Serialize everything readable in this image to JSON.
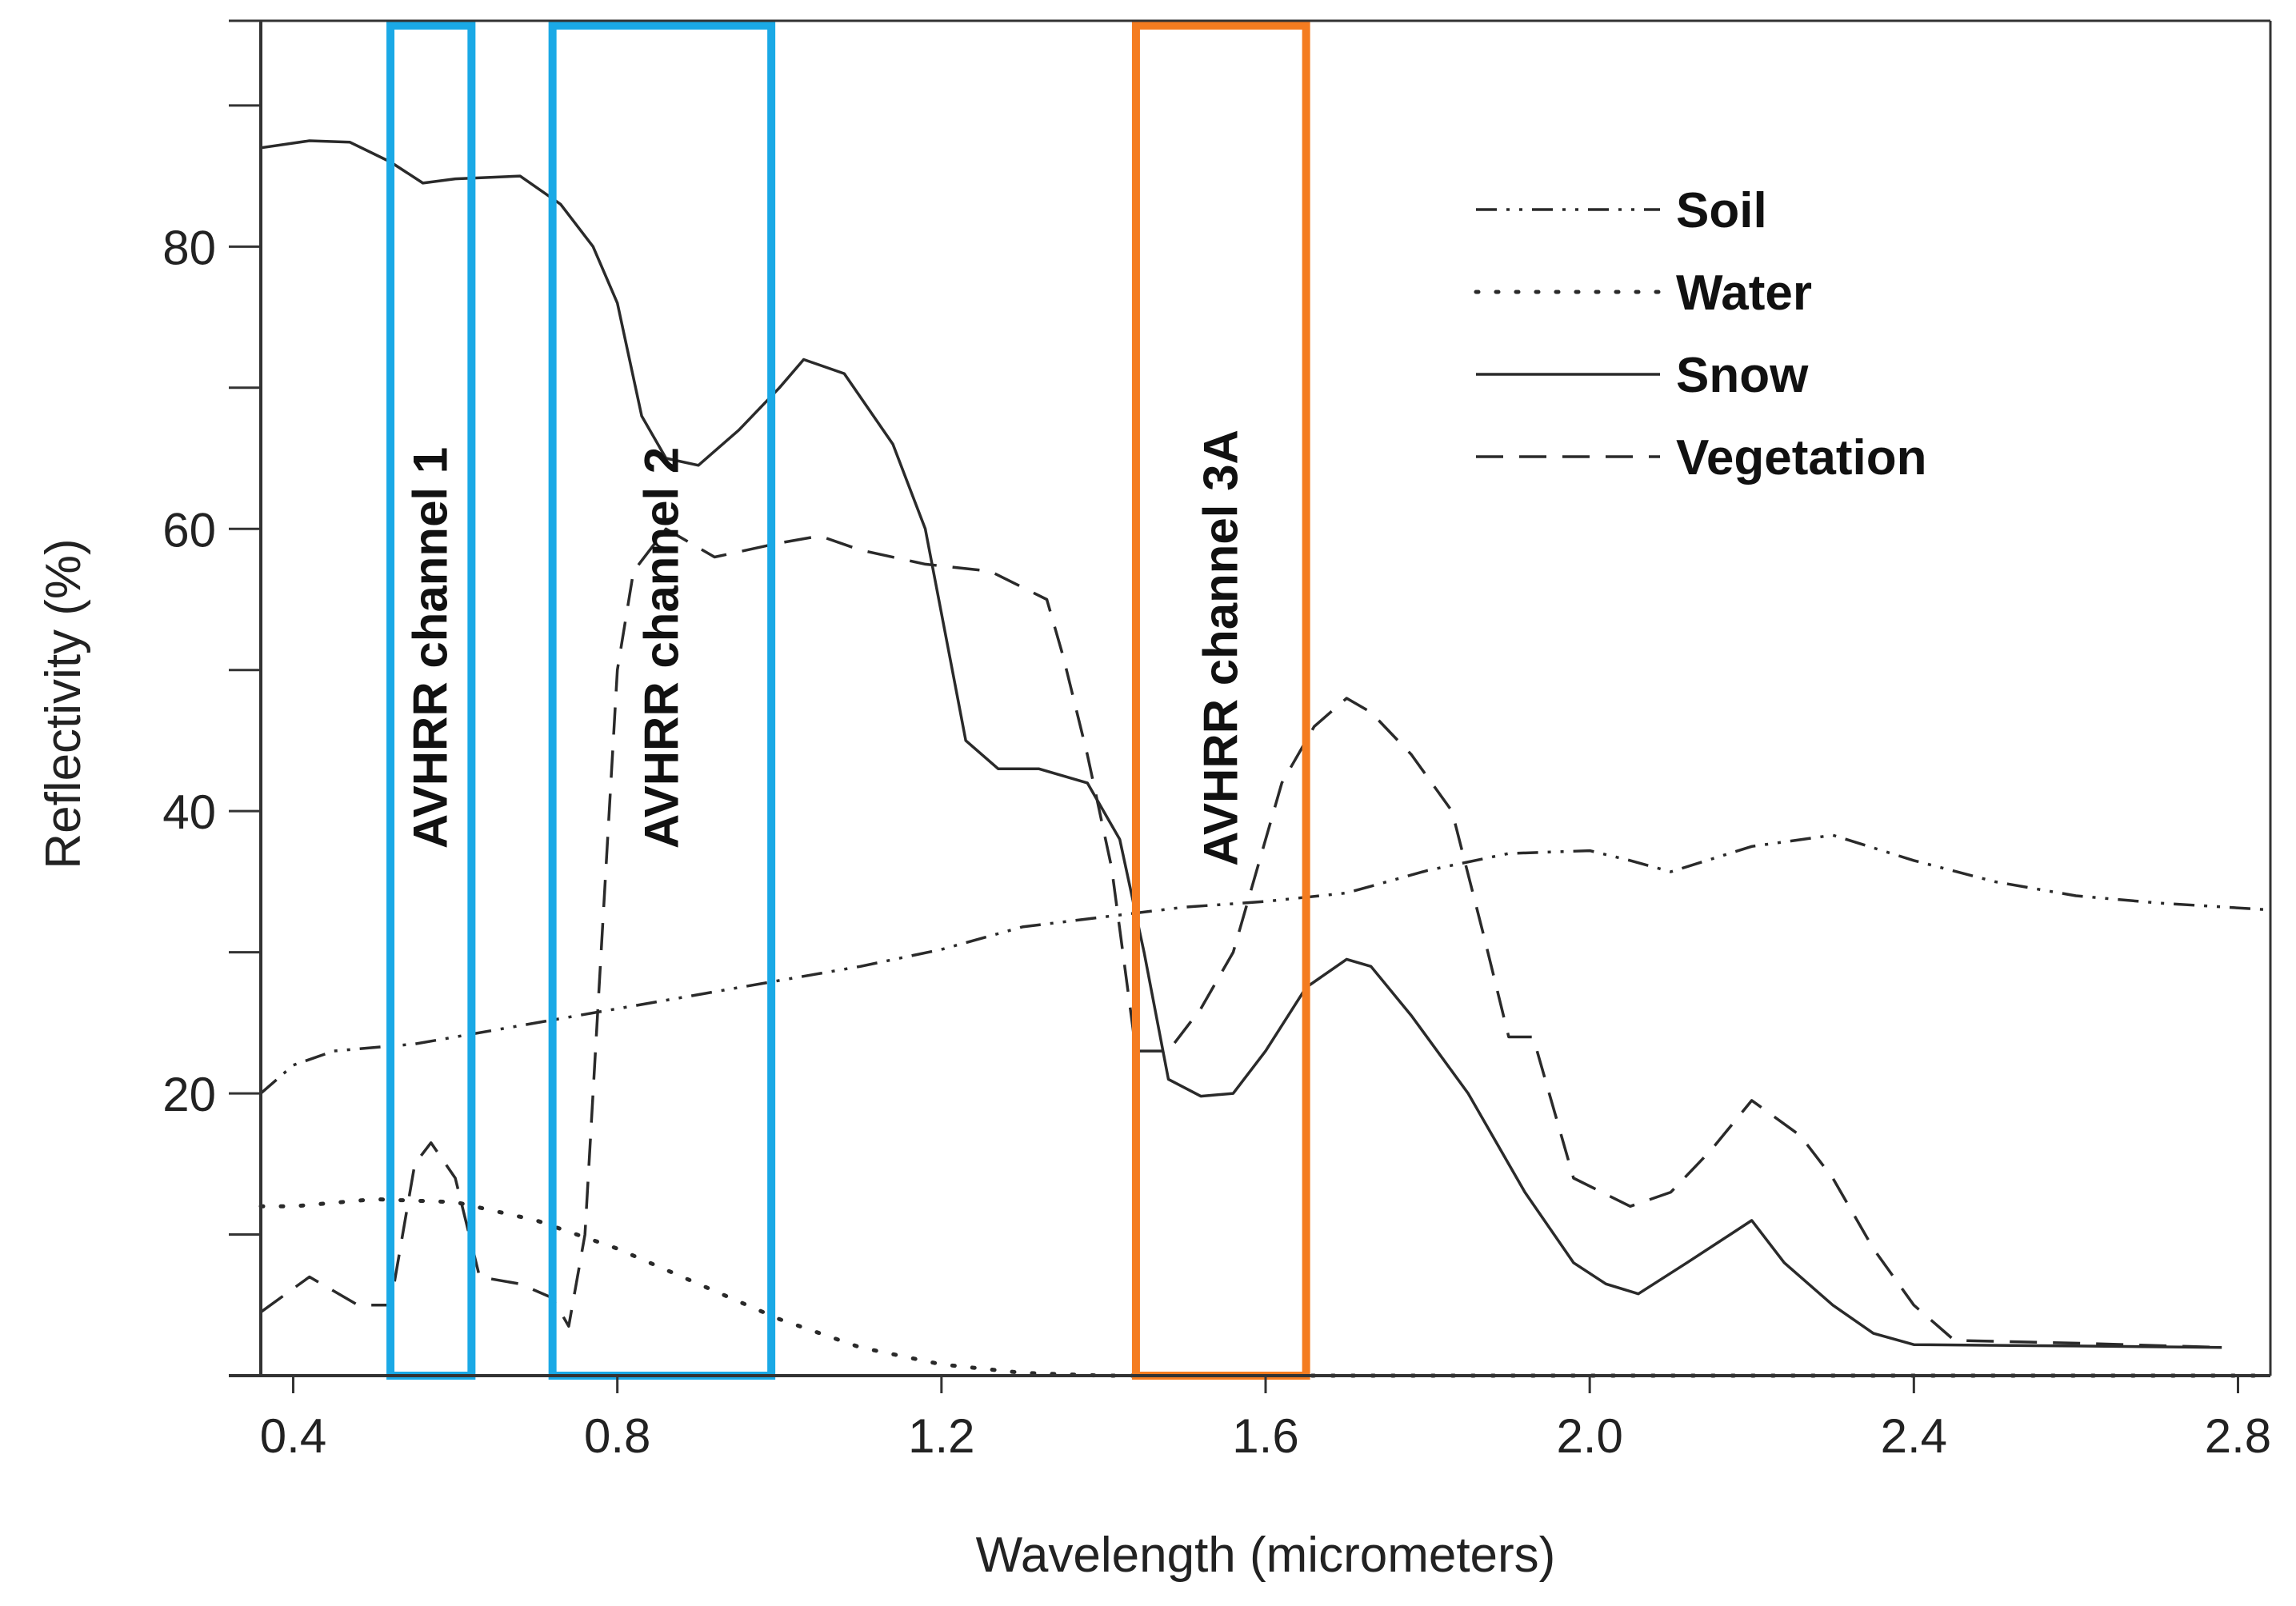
{
  "chart_data": {
    "type": "line",
    "title": "",
    "xlabel": "Wavelength (micrometers)",
    "ylabel": "Reflectivity  (%)",
    "xlim": [
      0.36,
      2.84
    ],
    "ylim": [
      0,
      96
    ],
    "x_ticks": [
      0.4,
      0.8,
      1.2,
      1.6,
      2.0,
      2.4,
      2.8
    ],
    "x_tick_labels": [
      "0.4",
      "0.8",
      "1.2",
      "1.6",
      "2.0",
      "2.4",
      "2.8"
    ],
    "y_ticks": [
      20,
      40,
      60,
      80
    ],
    "y_tick_labels": [
      "20",
      "40",
      "60",
      "80"
    ],
    "y_minor_ticks": [
      10,
      30,
      50,
      70,
      90
    ],
    "grid": false,
    "legend_position": "top-right",
    "series": [
      {
        "name": "Soil",
        "style": "dashdotdot",
        "points": [
          [
            0.36,
            20
          ],
          [
            0.4,
            22
          ],
          [
            0.45,
            23
          ],
          [
            0.55,
            23.5
          ],
          [
            0.65,
            24.5
          ],
          [
            0.75,
            25.5
          ],
          [
            0.85,
            26.5
          ],
          [
            1.0,
            28
          ],
          [
            1.1,
            29
          ],
          [
            1.2,
            30.2
          ],
          [
            1.3,
            31.8
          ],
          [
            1.4,
            32.5
          ],
          [
            1.5,
            33.2
          ],
          [
            1.6,
            33.6
          ],
          [
            1.7,
            34.2
          ],
          [
            1.8,
            35.8
          ],
          [
            1.9,
            37
          ],
          [
            2.0,
            37.2
          ],
          [
            2.05,
            36.5
          ],
          [
            2.1,
            35.7
          ],
          [
            2.2,
            37.5
          ],
          [
            2.3,
            38.3
          ],
          [
            2.4,
            36.5
          ],
          [
            2.5,
            35
          ],
          [
            2.6,
            34
          ],
          [
            2.7,
            33.5
          ],
          [
            2.84,
            33
          ]
        ]
      },
      {
        "name": "Water",
        "style": "dotted",
        "points": [
          [
            0.36,
            12
          ],
          [
            0.4,
            12
          ],
          [
            0.5,
            12.5
          ],
          [
            0.6,
            12.3
          ],
          [
            0.7,
            11
          ],
          [
            0.8,
            9
          ],
          [
            0.9,
            6.5
          ],
          [
            1.0,
            4
          ],
          [
            1.1,
            2
          ],
          [
            1.2,
            0.8
          ],
          [
            1.3,
            0.2
          ],
          [
            1.4,
            0
          ],
          [
            2.84,
            0
          ]
        ]
      },
      {
        "name": "Snow",
        "style": "solid",
        "points": [
          [
            0.36,
            87
          ],
          [
            0.42,
            87.5
          ],
          [
            0.47,
            87.4
          ],
          [
            0.52,
            86
          ],
          [
            0.56,
            84.5
          ],
          [
            0.6,
            84.8
          ],
          [
            0.68,
            85
          ],
          [
            0.73,
            83
          ],
          [
            0.77,
            80
          ],
          [
            0.8,
            76
          ],
          [
            0.83,
            68
          ],
          [
            0.86,
            65
          ],
          [
            0.9,
            64.5
          ],
          [
            0.95,
            67
          ],
          [
            1.0,
            70
          ],
          [
            1.03,
            72
          ],
          [
            1.08,
            71
          ],
          [
            1.14,
            66
          ],
          [
            1.18,
            60
          ],
          [
            1.21,
            51
          ],
          [
            1.23,
            45
          ],
          [
            1.27,
            43
          ],
          [
            1.32,
            43
          ],
          [
            1.38,
            42
          ],
          [
            1.42,
            38
          ],
          [
            1.45,
            30
          ],
          [
            1.48,
            21
          ],
          [
            1.52,
            19.8
          ],
          [
            1.56,
            20
          ],
          [
            1.6,
            23
          ],
          [
            1.65,
            27.5
          ],
          [
            1.7,
            29.5
          ],
          [
            1.73,
            29
          ],
          [
            1.78,
            25.5
          ],
          [
            1.85,
            20
          ],
          [
            1.92,
            13
          ],
          [
            1.98,
            8
          ],
          [
            2.02,
            6.5
          ],
          [
            2.06,
            5.8
          ],
          [
            2.12,
            8
          ],
          [
            2.16,
            9.5
          ],
          [
            2.2,
            11
          ],
          [
            2.24,
            8
          ],
          [
            2.3,
            5
          ],
          [
            2.35,
            3
          ],
          [
            2.4,
            2.2
          ],
          [
            2.6,
            2.1
          ],
          [
            2.78,
            2
          ]
        ]
      },
      {
        "name": "Vegetation",
        "style": "dashed",
        "points": [
          [
            0.36,
            4.5
          ],
          [
            0.42,
            7
          ],
          [
            0.48,
            5
          ],
          [
            0.52,
            5
          ],
          [
            0.55,
            15
          ],
          [
            0.57,
            16.5
          ],
          [
            0.6,
            14
          ],
          [
            0.63,
            7
          ],
          [
            0.68,
            6.5
          ],
          [
            0.72,
            5.5
          ],
          [
            0.74,
            3.5
          ],
          [
            0.76,
            10
          ],
          [
            0.78,
            30
          ],
          [
            0.8,
            50
          ],
          [
            0.82,
            57
          ],
          [
            0.86,
            60
          ],
          [
            0.92,
            58
          ],
          [
            1.0,
            59
          ],
          [
            1.05,
            59.5
          ],
          [
            1.1,
            58.5
          ],
          [
            1.18,
            57.5
          ],
          [
            1.26,
            57
          ],
          [
            1.33,
            55
          ],
          [
            1.35,
            51
          ],
          [
            1.38,
            44
          ],
          [
            1.41,
            36
          ],
          [
            1.44,
            23
          ],
          [
            1.48,
            23
          ],
          [
            1.52,
            26
          ],
          [
            1.56,
            30
          ],
          [
            1.62,
            42
          ],
          [
            1.66,
            46
          ],
          [
            1.7,
            48
          ],
          [
            1.73,
            47
          ],
          [
            1.78,
            44
          ],
          [
            1.83,
            40
          ],
          [
            1.87,
            31
          ],
          [
            1.9,
            24
          ],
          [
            1.93,
            24
          ],
          [
            1.98,
            14
          ],
          [
            2.05,
            12
          ],
          [
            2.1,
            13
          ],
          [
            2.15,
            16
          ],
          [
            2.2,
            19.5
          ],
          [
            2.26,
            17
          ],
          [
            2.3,
            14
          ],
          [
            2.35,
            9
          ],
          [
            2.4,
            5
          ],
          [
            2.45,
            2.5
          ],
          [
            2.6,
            2.3
          ],
          [
            2.78,
            2
          ]
        ]
      }
    ],
    "bands": [
      {
        "label": "AVHRR channel 1",
        "x_range": [
          0.52,
          0.62
        ],
        "color": "#1aa9e6"
      },
      {
        "label": "AVHRR channel 2",
        "x_range": [
          0.72,
          0.99
        ],
        "color": "#1aa9e6"
      },
      {
        "label": "AVHRR channel 3A",
        "x_range": [
          1.44,
          1.65
        ],
        "color": "#f47c20"
      }
    ]
  }
}
